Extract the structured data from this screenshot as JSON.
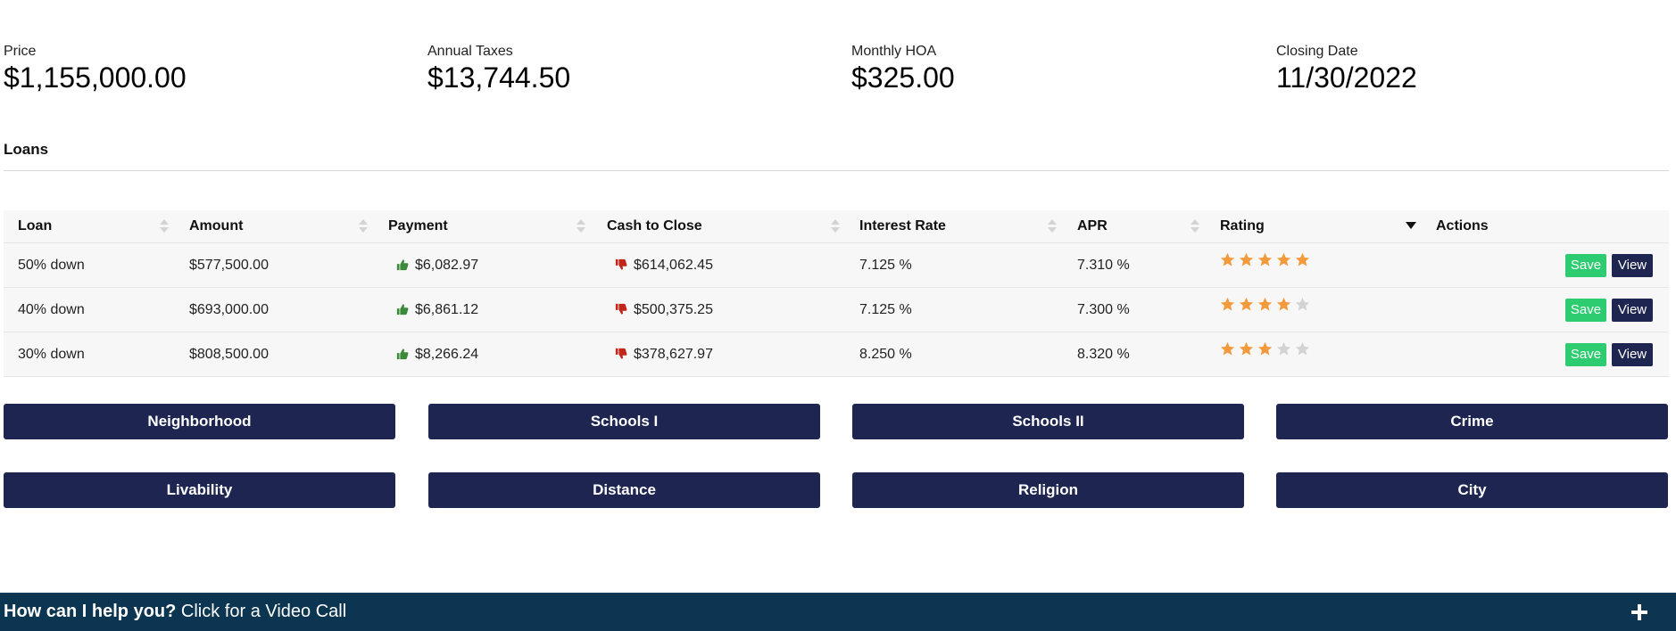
{
  "stats": [
    {
      "label": "Price",
      "value": "$1,155,000.00"
    },
    {
      "label": "Annual Taxes",
      "value": "$13,744.50"
    },
    {
      "label": "Monthly HOA",
      "value": "$325.00"
    },
    {
      "label": "Closing Date",
      "value": "11/30/2022"
    }
  ],
  "loans": {
    "title": "Loans",
    "columns": [
      "Loan",
      "Amount",
      "Payment",
      "Cash to Close",
      "Interest Rate",
      "APR",
      "Rating",
      "Actions"
    ],
    "sorted_column": "Rating",
    "rows": [
      {
        "loan": "50% down",
        "amount": "$577,500.00",
        "payment": "$6,082.97",
        "cash": "$614,062.45",
        "rate": "7.125 %",
        "apr": "7.310 %",
        "rating": 5
      },
      {
        "loan": "40% down",
        "amount": "$693,000.00",
        "payment": "$6,861.12",
        "cash": "$500,375.25",
        "rate": "7.125 %",
        "apr": "7.300 %",
        "rating": 4
      },
      {
        "loan": "30% down",
        "amount": "$808,500.00",
        "payment": "$8,266.24",
        "cash": "$378,627.97",
        "rate": "8.250 %",
        "apr": "8.320 %",
        "rating": 3
      }
    ],
    "rating_max": 5,
    "save_label": "Save",
    "view_label": "View",
    "payment_icon": "thumbs-up-icon",
    "cash_icon": "thumbs-down-icon"
  },
  "nav_buttons": [
    "Neighborhood",
    "Schools I",
    "Schools II",
    "Crime",
    "Livability",
    "Distance",
    "Religion",
    "City"
  ],
  "footer": {
    "bold": "How can I help you?",
    "text": " Click for a Video Call"
  },
  "colors": {
    "navy": "#1d2550",
    "green": "#2ecc71",
    "star": "#f39a3c",
    "star_empty": "#d3d3d3",
    "thumb_up": "#3a8a3a",
    "thumb_down": "#c0271a",
    "footer": "#0b3550"
  }
}
